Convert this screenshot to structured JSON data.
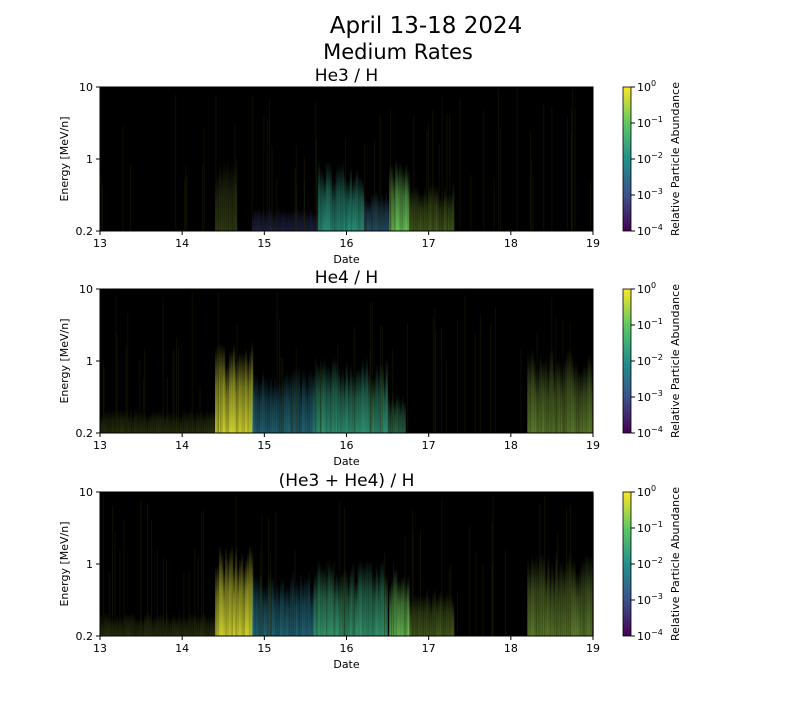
{
  "title_line1": "April 13-18 2024",
  "title_line2": "Medium Rates",
  "chart_data": [
    {
      "type": "heatmap",
      "title": "He3 / H",
      "xlabel": "Date",
      "ylabel": "Energy [MeV/n]",
      "xlim": [
        13,
        19
      ],
      "xticks": [
        "13",
        "14",
        "15",
        "16",
        "17",
        "18",
        "19"
      ],
      "yticks": [
        "0.2",
        "1",
        "10"
      ],
      "colorbar": {
        "label": "Relative Particle Abundance",
        "ticks": [
          "-4",
          "-3",
          "-2",
          "-1",
          "0"
        ],
        "scale": "log",
        "range": [
          0.0001,
          1
        ]
      },
      "events": [
        {
          "start": 14.4,
          "end": 14.65,
          "top": 1.2,
          "log_abundance": -0.5,
          "intensity": 0.25
        },
        {
          "start": 14.85,
          "end": 15.65,
          "top": 0.35,
          "log_abundance": -3.2,
          "intensity": 0.45
        },
        {
          "start": 15.65,
          "end": 16.2,
          "top": 1.0,
          "log_abundance": -1.8,
          "intensity": 0.9
        },
        {
          "start": 16.2,
          "end": 16.5,
          "top": 0.5,
          "log_abundance": -2.6,
          "intensity": 0.7
        },
        {
          "start": 16.52,
          "end": 16.75,
          "top": 1.0,
          "log_abundance": -0.9,
          "intensity": 0.95
        },
        {
          "start": 16.75,
          "end": 17.3,
          "top": 0.6,
          "log_abundance": -0.6,
          "intensity": 0.4
        }
      ]
    },
    {
      "type": "heatmap",
      "title": "He4 / H",
      "xlabel": "Date",
      "ylabel": "Energy [MeV/n]",
      "xlim": [
        13,
        19
      ],
      "xticks": [
        "13",
        "14",
        "15",
        "16",
        "17",
        "18",
        "19"
      ],
      "yticks": [
        "0.2",
        "1",
        "10"
      ],
      "colorbar": {
        "label": "Relative Particle Abundance",
        "ticks": [
          "-4",
          "-3",
          "-2",
          "-1",
          "0"
        ],
        "scale": "log",
        "range": [
          0.0001,
          1
        ]
      },
      "events": [
        {
          "start": 13.0,
          "end": 14.4,
          "top": 0.35,
          "log_abundance": -0.5,
          "intensity": 0.2
        },
        {
          "start": 14.4,
          "end": 14.85,
          "top": 2.0,
          "log_abundance": -0.2,
          "intensity": 0.95
        },
        {
          "start": 14.85,
          "end": 15.6,
          "top": 0.9,
          "log_abundance": -2.4,
          "intensity": 0.8
        },
        {
          "start": 15.6,
          "end": 16.5,
          "top": 1.2,
          "log_abundance": -1.7,
          "intensity": 0.9
        },
        {
          "start": 16.5,
          "end": 16.7,
          "top": 0.5,
          "log_abundance": -1.5,
          "intensity": 0.6
        },
        {
          "start": 18.2,
          "end": 19.0,
          "top": 1.6,
          "log_abundance": -0.6,
          "intensity": 0.55
        }
      ]
    },
    {
      "type": "heatmap",
      "title": "(He3 + He4) / H",
      "xlabel": "Date",
      "ylabel": "Energy [MeV/n]",
      "xlim": [
        13,
        19
      ],
      "xticks": [
        "13",
        "14",
        "15",
        "16",
        "17",
        "18",
        "19"
      ],
      "yticks": [
        "0.2",
        "1",
        "10"
      ],
      "colorbar": {
        "label": "Relative Particle Abundance",
        "ticks": [
          "-4",
          "-3",
          "-2",
          "-1",
          "0"
        ],
        "scale": "log",
        "range": [
          0.0001,
          1
        ]
      },
      "events": [
        {
          "start": 13.0,
          "end": 14.4,
          "top": 0.35,
          "log_abundance": -0.5,
          "intensity": 0.2
        },
        {
          "start": 14.4,
          "end": 14.85,
          "top": 2.0,
          "log_abundance": -0.2,
          "intensity": 0.95
        },
        {
          "start": 14.85,
          "end": 15.6,
          "top": 0.9,
          "log_abundance": -2.4,
          "intensity": 0.8
        },
        {
          "start": 15.6,
          "end": 16.5,
          "top": 1.2,
          "log_abundance": -1.6,
          "intensity": 0.9
        },
        {
          "start": 16.52,
          "end": 16.75,
          "top": 1.0,
          "log_abundance": -0.9,
          "intensity": 0.9
        },
        {
          "start": 16.75,
          "end": 17.3,
          "top": 0.6,
          "log_abundance": -0.6,
          "intensity": 0.4
        },
        {
          "start": 18.2,
          "end": 19.0,
          "top": 1.6,
          "log_abundance": -0.6,
          "intensity": 0.55
        }
      ]
    }
  ]
}
